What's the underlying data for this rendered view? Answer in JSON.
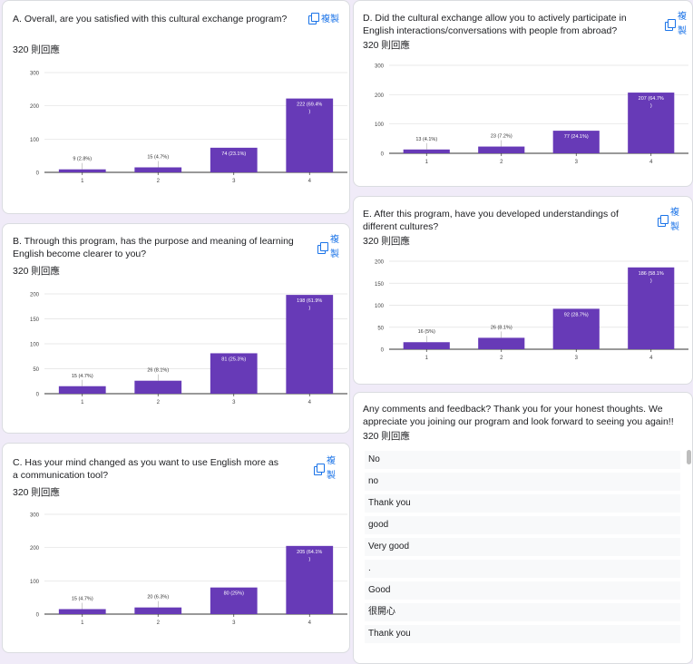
{
  "accent_color": "#673ab7",
  "copy_label": "複製",
  "questions": [
    {
      "id": "A",
      "title": "A. Overall, are you satisfied with this cultural exchange program?",
      "count": "320 則回應",
      "chart_data": {
        "type": "bar",
        "categories": [
          "1",
          "2",
          "3",
          "4"
        ],
        "values": [
          9,
          15,
          74,
          222
        ],
        "data_labels": [
          "9 (2.8%)",
          "15 (4.7%)",
          "74 (23.1%)",
          "222 (69.4%\n)"
        ],
        "yticks": [
          0,
          100,
          200,
          300
        ],
        "ylim": [
          0,
          300
        ],
        "grid": true
      }
    },
    {
      "id": "B",
      "title": "B. Through this program, has the purpose and meaning of learning English become clearer to you?",
      "count": "320 則回應",
      "chart_data": {
        "type": "bar",
        "categories": [
          "1",
          "2",
          "3",
          "4"
        ],
        "values": [
          15,
          26,
          81,
          198
        ],
        "data_labels": [
          "15 (4.7%)",
          "26 (8.1%)",
          "81 (25.3%)",
          "198 (61.9%\n)"
        ],
        "yticks": [
          0,
          50,
          100,
          150,
          200
        ],
        "ylim": [
          0,
          200
        ],
        "grid": true
      }
    },
    {
      "id": "C",
      "title": "C. Has your mind changed as you want to use English more as a communication tool?",
      "count": "320 則回應",
      "chart_data": {
        "type": "bar",
        "categories": [
          "1",
          "2",
          "3",
          "4"
        ],
        "values": [
          15,
          20,
          80,
          205
        ],
        "data_labels": [
          "15 (4.7%)",
          "20 (6.3%)",
          "80 (25%)",
          "205 (64.1%\n)"
        ],
        "yticks": [
          0,
          100,
          200,
          300
        ],
        "ylim": [
          0,
          300
        ],
        "grid": true
      }
    },
    {
      "id": "D",
      "title": "D. Did the cultural exchange allow you to actively participate in English interactions/conversations with people from abroad?",
      "count": "320 則回應",
      "chart_data": {
        "type": "bar",
        "categories": [
          "1",
          "2",
          "3",
          "4"
        ],
        "values": [
          13,
          23,
          77,
          207
        ],
        "data_labels": [
          "13 (4.1%)",
          "23 (7.2%)",
          "77 (24.1%)",
          "207 (64.7%\n)"
        ],
        "yticks": [
          0,
          100,
          200,
          300
        ],
        "ylim": [
          0,
          300
        ],
        "grid": true
      }
    },
    {
      "id": "E",
      "title": "E. After this program, have you developed understandings of different cultures?",
      "count": "320 則回應",
      "chart_data": {
        "type": "bar",
        "categories": [
          "1",
          "2",
          "3",
          "4"
        ],
        "values": [
          16,
          26,
          92,
          186
        ],
        "data_labels": [
          "16 (5%)",
          "26 (8.1%)",
          "92 (28.7%)",
          "186 (58.1%\n)"
        ],
        "yticks": [
          0,
          50,
          100,
          150,
          200
        ],
        "ylim": [
          0,
          200
        ],
        "grid": true
      }
    }
  ],
  "feedback": {
    "title": "Any comments and feedback? Thank you for your honest thoughts. We appreciate you joining our program and look forward to seeing you again!!",
    "count": "320 則回應",
    "responses": [
      "No",
      "no",
      "Thank you",
      "good",
      "Very good",
      ".",
      "Good",
      "很開心",
      "Thank you"
    ]
  }
}
